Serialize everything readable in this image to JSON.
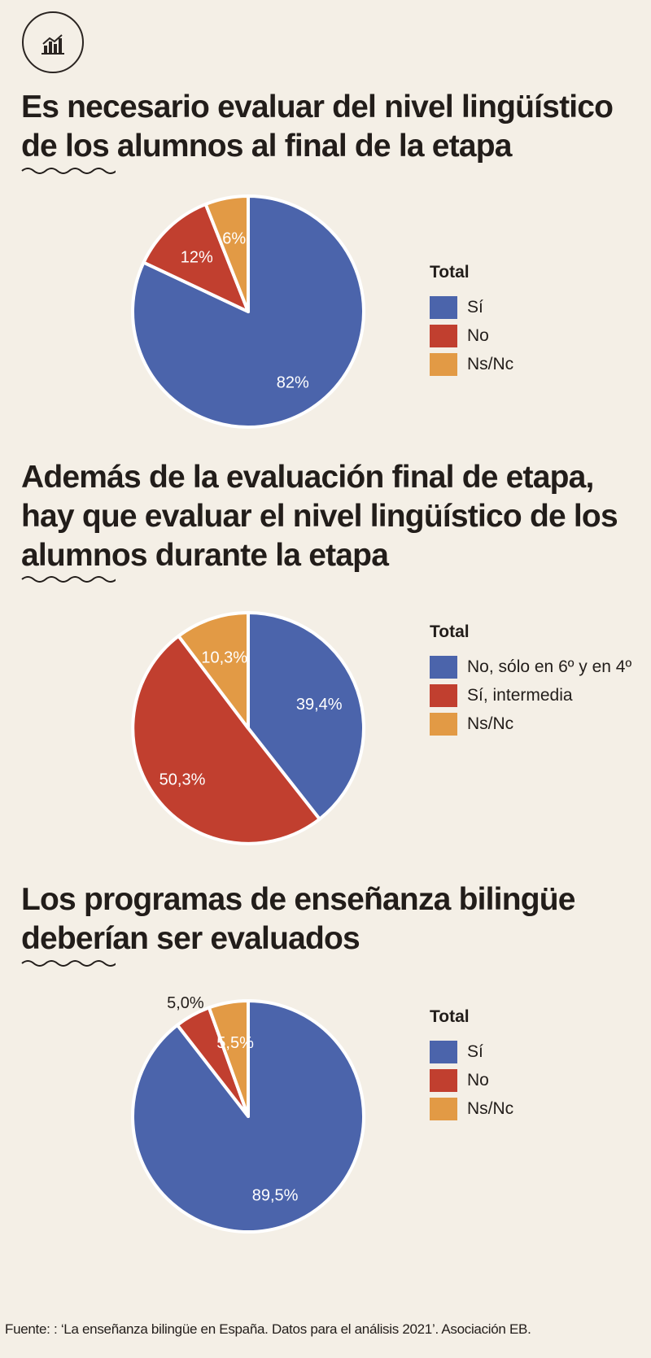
{
  "colors": {
    "blue": "#4b64ab",
    "red": "#c13f2f",
    "orange": "#e29a45",
    "text": "#221d1a",
    "background": "#f4efe6"
  },
  "header": {
    "logo": "chart-logo-icon"
  },
  "chart_data": [
    {
      "type": "pie",
      "title": [
        "Es necesario evaluar del nivel lingüístico",
        "de los alumnos al final de la etapa"
      ],
      "legend_title": "Total",
      "categories": [
        "Sí",
        "No",
        "Ns/Nc"
      ],
      "values": [
        82,
        12,
        6
      ],
      "labels": [
        "82%",
        "12%",
        "6%"
      ],
      "colors": [
        "#4b64ab",
        "#c13f2f",
        "#e29a45"
      ]
    },
    {
      "type": "pie",
      "title": [
        "Además de la evaluación final de etapa,",
        "hay que evaluar el nivel lingüístico de los",
        "alumnos durante la etapa"
      ],
      "legend_title": "Total",
      "categories": [
        "No, sólo en 6º y en 4º",
        "Sí, intermedia",
        "Ns/Nc"
      ],
      "values": [
        39.4,
        50.3,
        10.3
      ],
      "labels": [
        "39,4%",
        "50,3%",
        "10,3%"
      ],
      "colors": [
        "#4b64ab",
        "#c13f2f",
        "#e29a45"
      ]
    },
    {
      "type": "pie",
      "title": [
        "Los programas de enseñanza bilingüe",
        "deberían ser evaluados"
      ],
      "legend_title": "Total",
      "categories": [
        "Sí",
        "No",
        "Ns/Nc"
      ],
      "values": [
        89.5,
        5.0,
        5.5
      ],
      "labels": [
        "89,5%",
        "5,0%",
        "5,5%"
      ],
      "colors": [
        "#4b64ab",
        "#c13f2f",
        "#e29a45"
      ]
    }
  ],
  "footer": {
    "source": "Fuente: : ‘La enseñanza bilingüe en España. Datos para el análisis 2021’. Asociación EB."
  }
}
